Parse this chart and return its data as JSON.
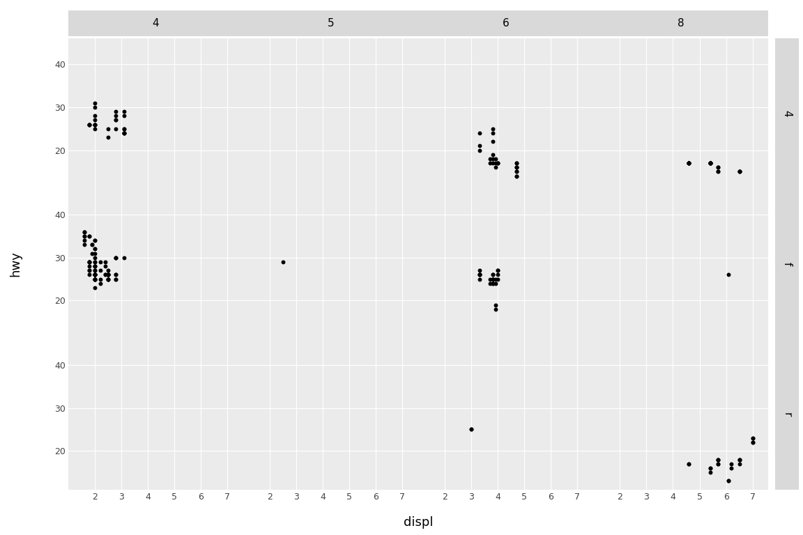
{
  "xlabel": "displ",
  "ylabel": "hwy",
  "col_labels": [
    "4",
    "5",
    "6",
    "8"
  ],
  "row_labels": [
    "4",
    "f",
    "r"
  ],
  "xlim": [
    1.0,
    7.6
  ],
  "ylim": [
    11,
    46
  ],
  "xticks": [
    2,
    3,
    4,
    5,
    6,
    7
  ],
  "yticks": [
    20,
    30,
    40
  ],
  "bg_color": "#EBEBEB",
  "grid_color": "#FFFFFF",
  "strip_bg": "#D9D9D9",
  "point_color": "black",
  "point_size": 18,
  "data": {
    "4_4": {
      "displ": [
        1.8,
        1.8,
        2.0,
        2.0,
        2.0,
        2.0,
        2.0,
        2.0,
        2.0,
        2.5,
        2.5,
        2.8,
        2.8,
        3.1,
        1.8,
        1.8,
        2.0,
        2.0,
        2.8,
        2.8,
        3.1,
        3.1,
        2.8,
        3.1,
        3.1,
        3.1,
        3.1,
        3.1
      ],
      "hwy": [
        26,
        26,
        31,
        30,
        26,
        26,
        27,
        26,
        25,
        25,
        23,
        27,
        25,
        25,
        26,
        26,
        28,
        26,
        28,
        29,
        29,
        28,
        27,
        24,
        24,
        24,
        24,
        25
      ]
    },
    "5_4": {
      "displ": [],
      "hwy": []
    },
    "6_4": {
      "displ": [
        3.3,
        3.8,
        3.8,
        3.8,
        4.0,
        3.7,
        3.7,
        3.9,
        3.9,
        4.7,
        4.7,
        4.7,
        4.7,
        4.7,
        4.7,
        4.0,
        3.3,
        3.3,
        3.8,
        3.8,
        3.8,
        4.0,
        3.9,
        4.7,
        4.7,
        4.7
      ],
      "hwy": [
        24,
        25,
        24,
        22,
        17,
        17,
        18,
        18,
        17,
        16,
        16,
        17,
        17,
        15,
        16,
        17,
        21,
        20,
        19,
        18,
        17,
        17,
        16,
        15,
        14,
        14
      ]
    },
    "8_4": {
      "displ": [
        5.4,
        5.4,
        5.4,
        5.4,
        5.4,
        5.4,
        5.4,
        5.4,
        4.6,
        4.6,
        4.6,
        4.6,
        5.4,
        5.4,
        5.4,
        5.4,
        4.6,
        4.6,
        4.6,
        5.7,
        5.7,
        5.7,
        5.7,
        6.5,
        6.5,
        6.5,
        6.5
      ],
      "hwy": [
        17,
        17,
        17,
        17,
        17,
        17,
        17,
        17,
        17,
        17,
        17,
        17,
        17,
        17,
        17,
        17,
        17,
        17,
        17,
        16,
        16,
        15,
        15,
        15,
        15,
        15,
        15
      ]
    },
    "4_f": {
      "displ": [
        1.8,
        1.8,
        2.0,
        2.0,
        2.0,
        2.0,
        2.0,
        2.0,
        2.0,
        2.0,
        2.0,
        2.5,
        2.5,
        2.0,
        2.0,
        2.0,
        2.0,
        2.0,
        2.5,
        2.5,
        1.6,
        1.6,
        1.6,
        1.6,
        1.6,
        1.6,
        1.8,
        1.8,
        1.8,
        1.8,
        2.0,
        2.0,
        2.0,
        2.0,
        2.4,
        2.4,
        2.4,
        2.4,
        2.5,
        2.5,
        2.0,
        2.0,
        2.2,
        2.2,
        2.2,
        2.2,
        2.5,
        2.5,
        2.5,
        2.5,
        1.8,
        1.8,
        2.0,
        2.0,
        2.8,
        2.8,
        1.9,
        2.0,
        2.0,
        2.0,
        2.0,
        2.0,
        2.5,
        2.5,
        2.8,
        2.8,
        1.9,
        1.9,
        2.0,
        2.0,
        2.5,
        2.5,
        1.8,
        1.8,
        2.0,
        2.0,
        2.8,
        2.8,
        2.8,
        3.1
      ],
      "hwy": [
        29,
        29,
        31,
        30,
        26,
        26,
        27,
        26,
        25,
        25,
        23,
        27,
        25,
        28,
        29,
        26,
        26,
        26,
        26,
        26,
        33,
        35,
        34,
        36,
        35,
        36,
        29,
        26,
        27,
        28,
        26,
        25,
        25,
        25,
        28,
        29,
        26,
        26,
        26,
        26,
        28,
        26,
        29,
        27,
        24,
        25,
        25,
        25,
        26,
        25,
        29,
        27,
        29,
        27,
        25,
        25,
        31,
        26,
        26,
        28,
        26,
        25,
        26,
        26,
        26,
        26,
        33,
        33,
        32,
        32,
        26,
        26,
        35,
        35,
        34,
        34,
        30,
        30,
        30,
        30
      ]
    },
    "5_f": {
      "displ": [
        2.5
      ],
      "hwy": [
        29
      ]
    },
    "6_f": {
      "displ": [
        3.3,
        3.3,
        3.3,
        3.8,
        3.8,
        3.8,
        3.8,
        3.8,
        3.8,
        4.0,
        3.7,
        3.7,
        3.9,
        3.9,
        4.0,
        4.0,
        3.3,
        3.3,
        3.3,
        3.8,
        3.8,
        3.8,
        4.0,
        3.9,
        3.9
      ],
      "hwy": [
        25,
        26,
        27,
        24,
        25,
        26,
        25,
        24,
        26,
        25,
        24,
        25,
        24,
        25,
        27,
        27,
        26,
        26,
        26,
        25,
        25,
        25,
        26,
        18,
        19
      ]
    },
    "8_f": {
      "displ": [
        6.1
      ],
      "hwy": [
        26
      ]
    },
    "4_r": {
      "displ": [],
      "hwy": []
    },
    "5_r": {
      "displ": [],
      "hwy": []
    },
    "6_r": {
      "displ": [
        3.0,
        3.0
      ],
      "hwy": [
        25,
        25
      ]
    },
    "8_r": {
      "displ": [
        4.6,
        4.6,
        5.4,
        5.4,
        5.4,
        5.7,
        5.7,
        5.7,
        5.7,
        5.7,
        6.1,
        6.1,
        6.2,
        6.2,
        6.5,
        6.5,
        6.5,
        6.5,
        7.0,
        7.0,
        7.0,
        7.0
      ],
      "hwy": [
        17,
        17,
        15,
        16,
        16,
        17,
        17,
        18,
        18,
        18,
        13,
        13,
        16,
        17,
        17,
        18,
        18,
        18,
        22,
        22,
        23,
        23
      ]
    }
  }
}
